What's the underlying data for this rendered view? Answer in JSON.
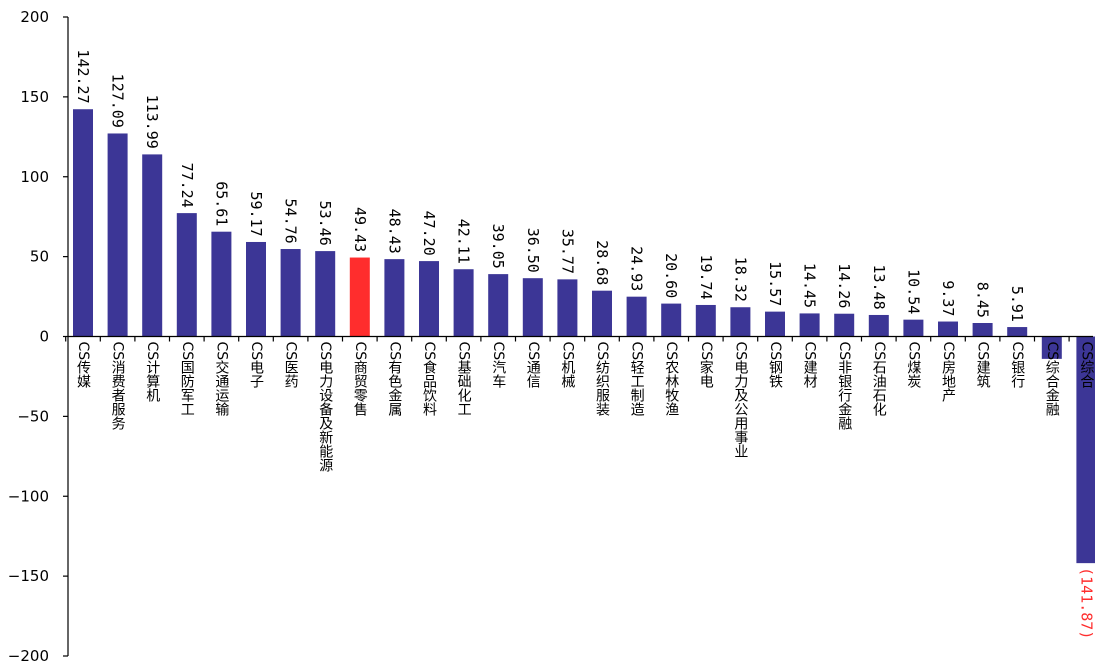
{
  "chart_data": {
    "type": "bar",
    "ylim": [
      -200,
      200
    ],
    "yticks": [
      200,
      150,
      100,
      50,
      0,
      -50,
      -100,
      -150,
      -200
    ],
    "grid": false,
    "categories": [
      "CS传媒",
      "CS消费者服务",
      "CS计算机",
      "CS国防军工",
      "CS交通运输",
      "CS电子",
      "CS医药",
      "CS电力设备及新能源",
      "CS商贸零售",
      "CS有色金属",
      "CS食品饮料",
      "CS基础化工",
      "CS汽车",
      "CS通信",
      "CS机械",
      "CS纺织服装",
      "CS轻工制造",
      "CS农林牧渔",
      "CS家电",
      "CS电力及公用事业",
      "CS钢铁",
      "CS建材",
      "CS非银行金融",
      "CS石油石化",
      "CS煤炭",
      "CS房地产",
      "CS建筑",
      "CS银行",
      "CS综合金融",
      "CS综合"
    ],
    "values": [
      142.27,
      127.09,
      113.99,
      77.24,
      65.61,
      59.17,
      54.76,
      53.46,
      49.43,
      48.43,
      47.2,
      42.11,
      39.05,
      36.5,
      35.77,
      28.68,
      24.93,
      20.6,
      19.74,
      18.32,
      15.57,
      14.45,
      14.26,
      13.48,
      10.54,
      9.37,
      8.45,
      5.91,
      -14.0,
      -141.87
    ],
    "value_labels": [
      "142.27",
      "127.09",
      "113.99",
      "77.24",
      "65.61",
      "59.17",
      "54.76",
      "53.46",
      "49.43",
      "48.43",
      "47.20",
      "42.11",
      "39.05",
      "36.50",
      "35.77",
      "28.68",
      "24.93",
      "20.60",
      "19.74",
      "18.32",
      "15.57",
      "14.45",
      "14.26",
      "13.48",
      "10.54",
      "9.37",
      "8.45",
      "5.91",
      "",
      "(141.87)"
    ],
    "colors": {
      "bar": "#3C3696",
      "highlight_bar": "#FF2D2D",
      "negative_label": "#FF2D2D",
      "axis": "#000000"
    },
    "highlight_index": 8
  }
}
